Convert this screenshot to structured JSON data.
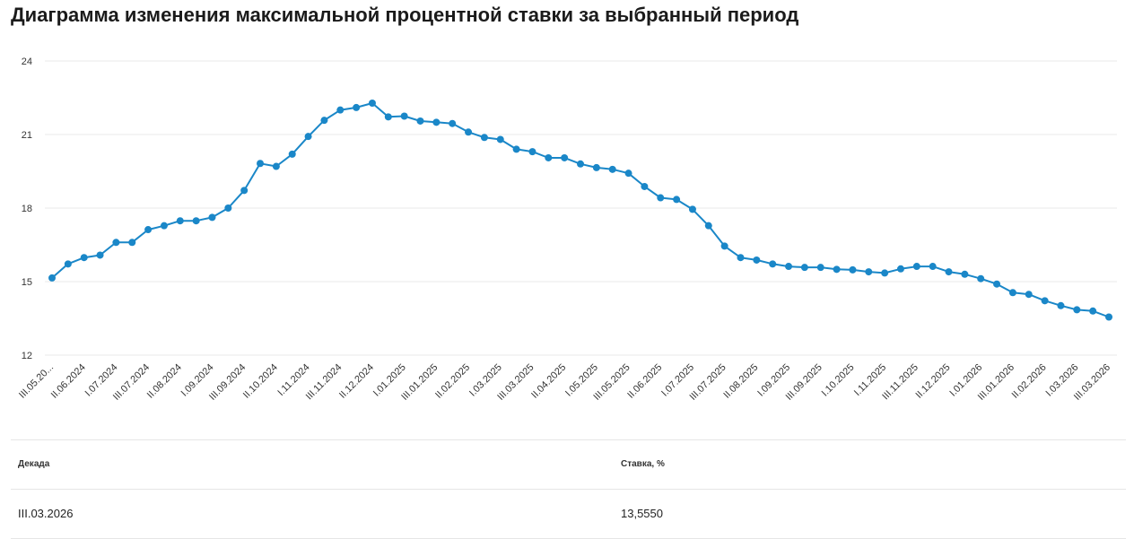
{
  "page": {
    "title": "Диаграмма изменения максимальной процентной ставки за выбранный период"
  },
  "colors": {
    "line": "#1a87c8",
    "grid": "#e9e9e9",
    "text": "#1b1b1b"
  },
  "chart_data": {
    "type": "line",
    "title": "Диаграмма изменения максимальной процентной ставки за выбранный период",
    "xlabel": "",
    "ylabel": "",
    "ylim": [
      12,
      24
    ],
    "yticks": [
      12,
      15,
      18,
      21,
      24
    ],
    "grid": true,
    "legend": "none",
    "x_tick_labels": [
      "III.05.20...",
      "II.06.2024",
      "I.07.2024",
      "III.07.2024",
      "II.08.2024",
      "I.09.2024",
      "III.09.2024",
      "II.10.2024",
      "I.11.2024",
      "III.11.2024",
      "II.12.2024",
      "I.01.2025",
      "III.01.2025",
      "II.02.2025",
      "I.03.2025",
      "III.03.2025",
      "II.04.2025",
      "I.05.2025",
      "III.05.2025",
      "II.06.2025",
      "I.07.2025",
      "III.07.2025",
      "II.08.2025",
      "I.09.2025",
      "III.09.2025",
      "I.10.2025",
      "I.11.2025",
      "III.11.2025",
      "II.12.2025",
      "I.01.2026",
      "III.01.2026",
      "II.02.2026",
      "I.03.2026",
      "III.03.2026"
    ],
    "series": [
      {
        "values": [
          15.15,
          15.72,
          15.98,
          16.08,
          16.6,
          16.6,
          17.12,
          17.28,
          17.48,
          17.48,
          17.62,
          18.0,
          18.72,
          19.82,
          19.7,
          20.2,
          20.92,
          21.58,
          22.0,
          22.1,
          22.28,
          21.72,
          21.75,
          21.55,
          21.5,
          21.45,
          21.1,
          20.88,
          20.8,
          20.4,
          20.3,
          20.05,
          20.05,
          19.8,
          19.65,
          19.58,
          19.42,
          18.88,
          18.42,
          18.35,
          17.95,
          17.28,
          16.45,
          15.98,
          15.88,
          15.72,
          15.62,
          15.58,
          15.58,
          15.5,
          15.48,
          15.4,
          15.35,
          15.52,
          15.62,
          15.62,
          15.4,
          15.3,
          15.12,
          14.9,
          14.55,
          14.48,
          14.22,
          14.02,
          13.85,
          13.8,
          13.555
        ]
      }
    ]
  },
  "table": {
    "headers": [
      "Декада",
      "Ставка, %"
    ],
    "rows": [
      [
        "III.03.2026",
        "13,5550"
      ]
    ]
  }
}
